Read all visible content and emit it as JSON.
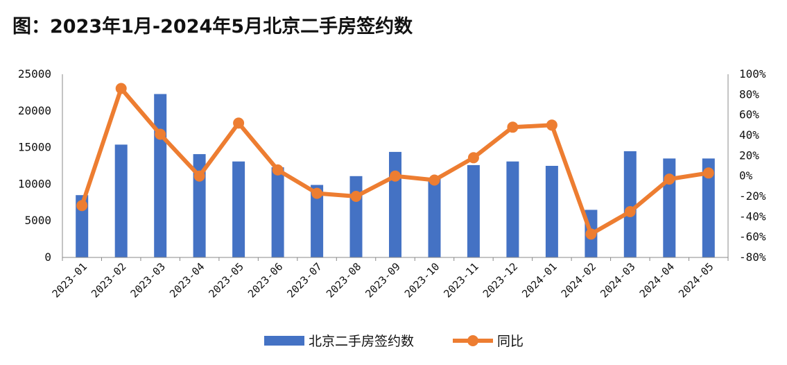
{
  "title": "图：2023年1月-2024年5月北京二手房签约数",
  "chart_data": {
    "type": "bar+line",
    "title": "图：2023年1月-2024年5月北京二手房签约数",
    "categories": [
      "2023-01",
      "2023-02",
      "2023-03",
      "2023-04",
      "2023-05",
      "2023-06",
      "2023-07",
      "2023-08",
      "2023-09",
      "2023-10",
      "2023-11",
      "2023-12",
      "2024-01",
      "2024-02",
      "2024-03",
      "2024-04",
      "2024-05"
    ],
    "series": [
      {
        "name": "北京二手房签约数",
        "type": "bar",
        "axis": "left",
        "color": "#4472C4",
        "values": [
          8500,
          15400,
          22300,
          14100,
          13100,
          12300,
          9900,
          11100,
          14400,
          10700,
          12600,
          13100,
          12500,
          6500,
          14500,
          13500,
          13500
        ]
      },
      {
        "name": "同比",
        "type": "line",
        "axis": "right",
        "color": "#ED7D31",
        "values": [
          -29,
          86,
          41,
          0,
          52,
          6,
          -17,
          -20,
          0,
          -4,
          18,
          48,
          50,
          -57,
          -35,
          -3,
          3
        ]
      }
    ],
    "y_left": {
      "min": 0,
      "max": 25000,
      "ticks": [
        "0",
        "5000",
        "10000",
        "15000",
        "20000",
        "25000"
      ]
    },
    "y_right": {
      "min": -80,
      "max": 100,
      "ticks": [
        "-80%",
        "-60%",
        "-40%",
        "-20%",
        "0%",
        "20%",
        "40%",
        "60%",
        "80%",
        "100%"
      ]
    },
    "grid": false,
    "legend_position": "bottom"
  }
}
